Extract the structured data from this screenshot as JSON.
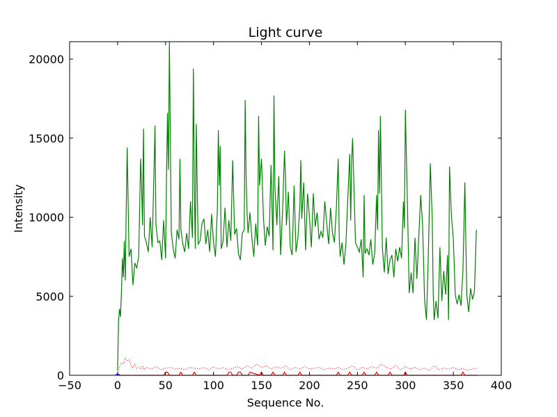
{
  "chart_data": {
    "type": "line",
    "title": "Light curve",
    "xlabel": "Sequence No.",
    "ylabel": "Intensity",
    "xlim": [
      -50,
      400
    ],
    "ylim": [
      0,
      21100
    ],
    "x_ticks": [
      -50,
      0,
      50,
      100,
      150,
      200,
      250,
      300,
      350,
      400
    ],
    "y_ticks": [
      0,
      5000,
      10000,
      15000,
      20000
    ],
    "grid": false,
    "legend": "none",
    "series": [
      {
        "color": "#008000",
        "style": "solid",
        "x": [
          0,
          1,
          2,
          3,
          4,
          5,
          6,
          7,
          8,
          9,
          10,
          12,
          14,
          16,
          18,
          20,
          22,
          24,
          25,
          26,
          27,
          28,
          30,
          32,
          34,
          36,
          38,
          39,
          40,
          42,
          44,
          46,
          48,
          50,
          51,
          52,
          53,
          54,
          55,
          56,
          58,
          60,
          62,
          64,
          65,
          66,
          68,
          70,
          72,
          74,
          76,
          78,
          79,
          80,
          81,
          82,
          84,
          86,
          88,
          90,
          92,
          94,
          96,
          98,
          100,
          102,
          104,
          105,
          106,
          107,
          108,
          110,
          112,
          114,
          116,
          118,
          120,
          122,
          124,
          126,
          128,
          130,
          132,
          133,
          134,
          135,
          136,
          138,
          140,
          142,
          144,
          146,
          147,
          148,
          150,
          152,
          154,
          156,
          158,
          160,
          162,
          163,
          164,
          166,
          168,
          170,
          172,
          174,
          175,
          176,
          178,
          180,
          182,
          184,
          186,
          188,
          190,
          191,
          192,
          194,
          196,
          198,
          200,
          202,
          204,
          206,
          208,
          210,
          212,
          214,
          216,
          218,
          220,
          222,
          224,
          226,
          228,
          230,
          231,
          232,
          234,
          236,
          238,
          240,
          242,
          243,
          244,
          245,
          246,
          248,
          250,
          252,
          254,
          256,
          257,
          258,
          260,
          262,
          264,
          266,
          268,
          270,
          271,
          272,
          273,
          274,
          276,
          278,
          280,
          282,
          284,
          286,
          288,
          290,
          292,
          294,
          296,
          298,
          299,
          300,
          302,
          304,
          306,
          308,
          310,
          312,
          314,
          316,
          318,
          320,
          322,
          324,
          326,
          328,
          329,
          330,
          332,
          334,
          336,
          338,
          340,
          342,
          344,
          345,
          346,
          348,
          350,
          352,
          354,
          356,
          358,
          360,
          361,
          362,
          364,
          366,
          368,
          370,
          372,
          374
        ],
        "y": [
          300,
          3500,
          4200,
          3700,
          5200,
          7400,
          6200,
          8500,
          6000,
          10500,
          14400,
          7500,
          8000,
          5700,
          7100,
          6800,
          7500,
          13700,
          12000,
          9500,
          15600,
          8800,
          8400,
          7800,
          10000,
          8100,
          13000,
          15800,
          9500,
          8400,
          8500,
          7300,
          9800,
          7400,
          12500,
          16600,
          13000,
          21100,
          15000,
          9000,
          8000,
          7400,
          9200,
          8600,
          13700,
          9200,
          8300,
          7800,
          9000,
          8000,
          11000,
          8700,
          19400,
          12000,
          8000,
          15900,
          8300,
          8500,
          9600,
          9900,
          8300,
          9200,
          7800,
          10200,
          8400,
          7500,
          10500,
          15500,
          12000,
          14500,
          8000,
          8500,
          10600,
          8100,
          9800,
          8500,
          13600,
          8900,
          9300,
          7700,
          7300,
          9000,
          9200,
          17400,
          12500,
          10200,
          9000,
          10300,
          8700,
          7500,
          9600,
          8200,
          16400,
          12000,
          13700,
          10000,
          8200,
          9400,
          8800,
          13300,
          7900,
          17700,
          12000,
          9500,
          12600,
          7600,
          10400,
          14200,
          12500,
          9500,
          11600,
          8100,
          7600,
          12000,
          7800,
          8700,
          10700,
          13600,
          9900,
          12200,
          7900,
          11500,
          10000,
          8100,
          11500,
          9400,
          10300,
          8600,
          9100,
          8700,
          11000,
          9600,
          8300,
          10600,
          9000,
          8400,
          10500,
          13700,
          8800,
          7500,
          8400,
          7000,
          8300,
          11200,
          14000,
          9800,
          13600,
          15000,
          12700,
          8400,
          8100,
          7800,
          8600,
          6200,
          11400,
          7700,
          8000,
          7600,
          8600,
          7000,
          7700,
          11400,
          9200,
          15500,
          11500,
          16400,
          8100,
          6500,
          8700,
          6400,
          7300,
          7600,
          6200,
          8000,
          7200,
          8100,
          7400,
          11000,
          9300,
          16800,
          11300,
          5200,
          6500,
          5200,
          8700,
          6100,
          8800,
          11400,
          9400,
          4800,
          3500,
          7800,
          13400,
          9900,
          5200,
          3500,
          4700,
          3600,
          8100,
          4700,
          6600,
          5100,
          7600,
          3500,
          13200,
          10100,
          8600,
          5100,
          4500,
          5100,
          4400,
          6600,
          9300,
          12200,
          5100,
          4000,
          5500,
          4800,
          5300,
          9200
        ]
      },
      {
        "color": "#ff0000",
        "style": "dotted",
        "x": [
          0,
          2,
          4,
          6,
          8,
          10,
          12,
          14,
          16,
          18,
          20,
          22,
          24,
          26,
          28,
          30,
          35,
          40,
          45,
          50,
          55,
          60,
          65,
          70,
          75,
          80,
          85,
          90,
          95,
          100,
          105,
          110,
          115,
          120,
          125,
          130,
          135,
          140,
          145,
          150,
          155,
          160,
          165,
          170,
          175,
          180,
          185,
          190,
          195,
          200,
          205,
          210,
          215,
          220,
          225,
          230,
          235,
          240,
          245,
          250,
          255,
          260,
          265,
          270,
          275,
          280,
          285,
          290,
          295,
          300,
          305,
          310,
          315,
          320,
          325,
          330,
          335,
          340,
          345,
          350,
          355,
          360,
          365,
          370,
          375
        ],
        "y": [
          100,
          500,
          800,
          700,
          1100,
          900,
          1000,
          600,
          500,
          700,
          450,
          550,
          400,
          600,
          350,
          500,
          400,
          550,
          350,
          450,
          500,
          400,
          450,
          350,
          500,
          450,
          400,
          500,
          350,
          550,
          400,
          500,
          350,
          450,
          550,
          400,
          600,
          450,
          700,
          500,
          600,
          400,
          550,
          450,
          600,
          350,
          500,
          400,
          550,
          400,
          450,
          500,
          350,
          450,
          400,
          500,
          350,
          450,
          600,
          350,
          500,
          400,
          550,
          450,
          700,
          500,
          400,
          600,
          350,
          550,
          400,
          500,
          350,
          450,
          300,
          600,
          350,
          450,
          400,
          500,
          350,
          450,
          300,
          400,
          450
        ]
      },
      {
        "color": "#ff0000",
        "style": "solid",
        "x": [
          0,
          48,
          50,
          52,
          54,
          64,
          66,
          68,
          78,
          80,
          82,
          114,
          116,
          118,
          120,
          124,
          126,
          128,
          130,
          136,
          138,
          148,
          150,
          152,
          160,
          162,
          164,
          172,
          174,
          176,
          188,
          190,
          192,
          228,
          230,
          232,
          240,
          242,
          244,
          255,
          257,
          259,
          268,
          270,
          272,
          282,
          284,
          286,
          298,
          300,
          302,
          358,
          360,
          362,
          375
        ],
        "y": [
          0,
          0,
          200,
          200,
          0,
          0,
          200,
          0,
          0,
          200,
          0,
          0,
          200,
          200,
          0,
          0,
          200,
          200,
          0,
          0,
          200,
          0,
          200,
          0,
          0,
          200,
          0,
          0,
          200,
          0,
          0,
          200,
          0,
          0,
          200,
          0,
          0,
          200,
          0,
          0,
          200,
          0,
          0,
          200,
          0,
          0,
          200,
          0,
          0,
          200,
          0,
          0,
          200,
          0,
          0
        ]
      },
      {
        "color": "#0000ff",
        "style": "solid",
        "x": [
          -2,
          0,
          2
        ],
        "y": [
          60,
          60,
          60
        ]
      }
    ]
  }
}
